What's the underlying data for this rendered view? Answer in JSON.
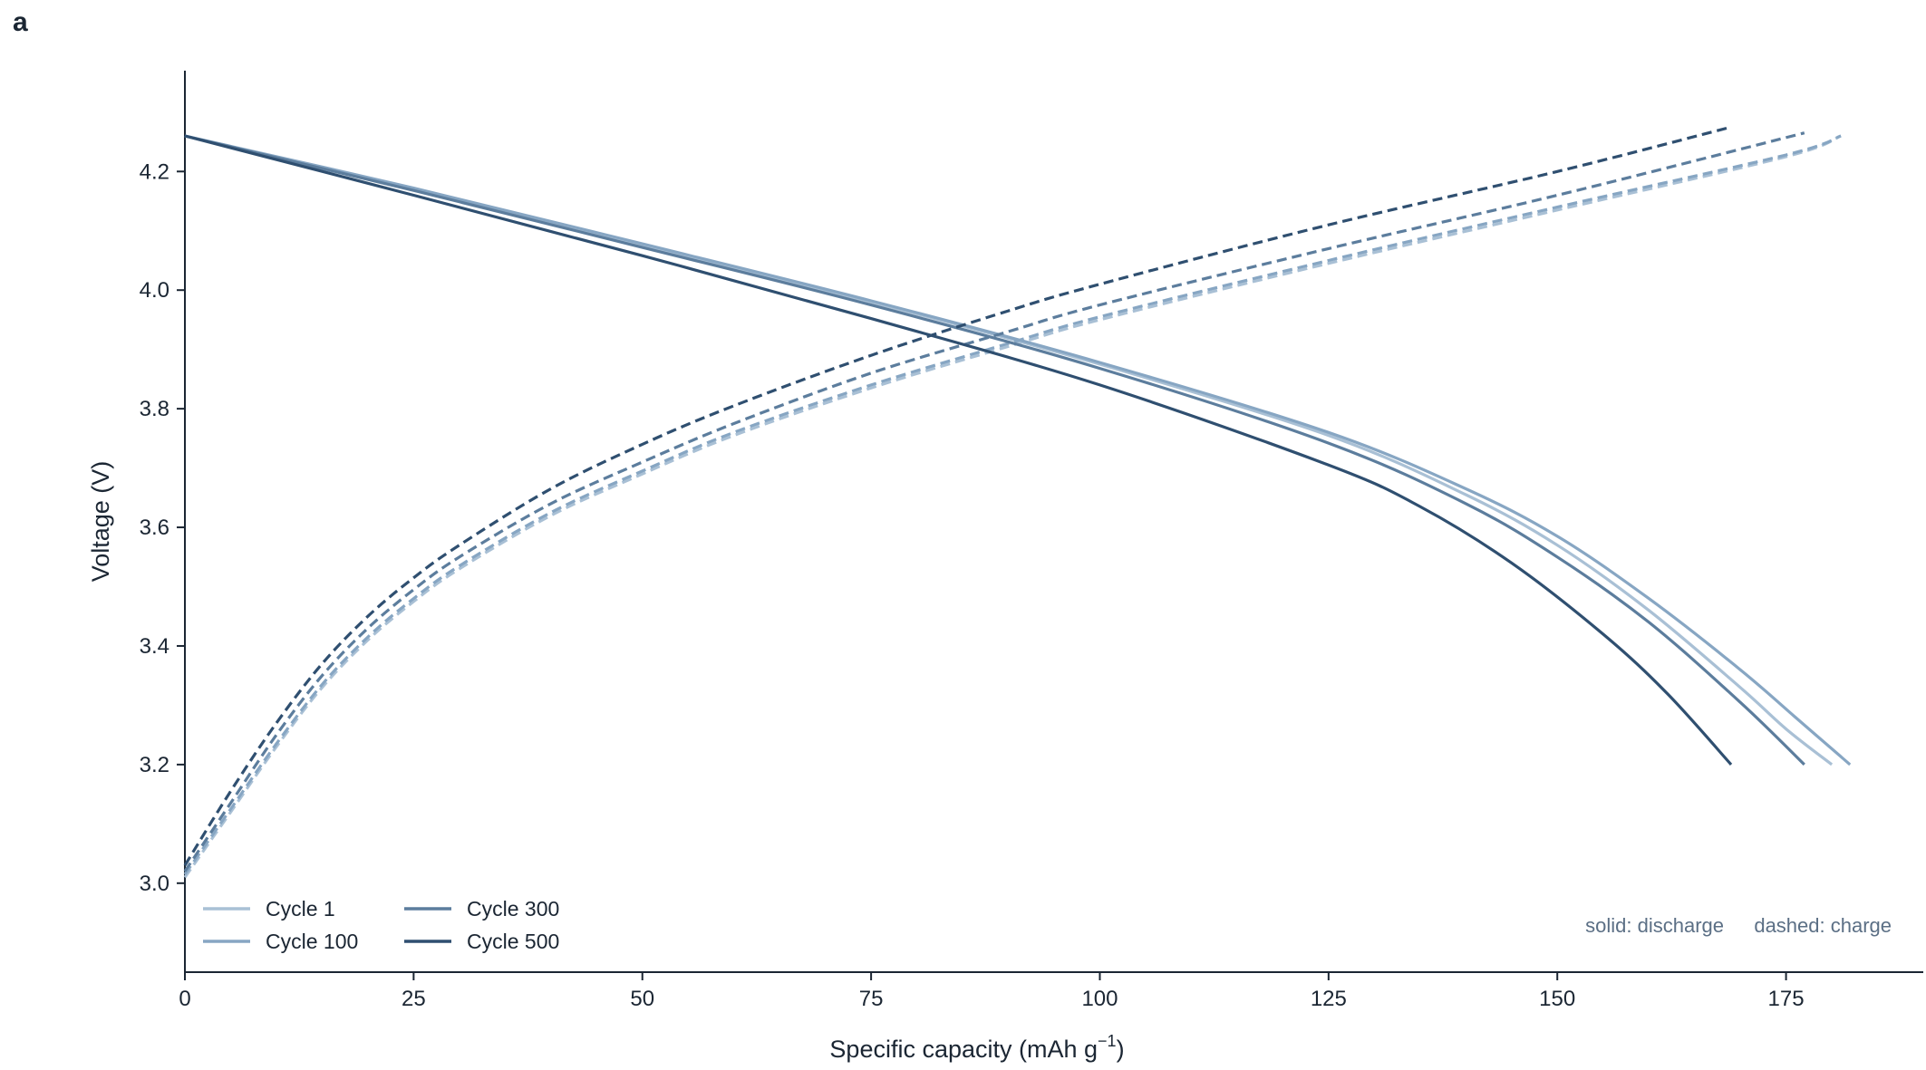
{
  "panel_label": "a",
  "chart_data": {
    "type": "line",
    "title": "",
    "xlabel": "Specific capacity (mAh g",
    "xlabel_sup": "−1",
    "xlabel_end": ")",
    "ylabel": "Voltage (V)",
    "xlim": [
      0,
      190
    ],
    "ylim": [
      2.85,
      4.37
    ],
    "xticks": [
      0,
      25,
      50,
      75,
      100,
      125,
      150,
      175
    ],
    "yticks": [
      3.0,
      3.2,
      3.4,
      3.6,
      3.8,
      4.0,
      4.2
    ],
    "grid": false,
    "legend_position": "bottom-left",
    "annotations": [
      "solid: discharge",
      "dashed: charge"
    ],
    "series": [
      {
        "name": "Cycle 1",
        "color": "#a9c0d5",
        "discharge": {
          "x": [
            0,
            25,
            50,
            75,
            100,
            125,
            140,
            150,
            160,
            170,
            175,
            180
          ],
          "y": [
            4.26,
            4.17,
            4.075,
            3.98,
            3.875,
            3.755,
            3.655,
            3.57,
            3.46,
            3.33,
            3.26,
            3.2
          ]
        },
        "charge": {
          "x": [
            0,
            5,
            10,
            15,
            20,
            25,
            30,
            40,
            50,
            60,
            75,
            90,
            100,
            125,
            150,
            175,
            181
          ],
          "y": [
            3.01,
            3.12,
            3.23,
            3.33,
            3.41,
            3.475,
            3.53,
            3.62,
            3.69,
            3.755,
            3.835,
            3.905,
            3.95,
            4.045,
            4.135,
            4.225,
            4.26
          ]
        }
      },
      {
        "name": "Cycle 100",
        "color": "#87a6c3",
        "discharge": {
          "x": [
            0,
            25,
            50,
            75,
            100,
            125,
            140,
            150,
            160,
            170,
            176,
            182
          ],
          "y": [
            4.26,
            4.172,
            4.078,
            3.982,
            3.878,
            3.76,
            3.665,
            3.585,
            3.48,
            3.36,
            3.28,
            3.2
          ]
        },
        "charge": {
          "x": [
            0,
            5,
            10,
            15,
            20,
            25,
            30,
            40,
            50,
            60,
            75,
            90,
            100,
            125,
            150,
            175,
            181
          ],
          "y": [
            3.015,
            3.125,
            3.235,
            3.335,
            3.415,
            3.48,
            3.535,
            3.625,
            3.695,
            3.76,
            3.84,
            3.91,
            3.955,
            4.05,
            4.14,
            4.228,
            4.26
          ]
        }
      },
      {
        "name": "Cycle 300",
        "color": "#5c7d9d",
        "discharge": {
          "x": [
            0,
            25,
            50,
            75,
            100,
            125,
            140,
            150,
            160,
            170,
            177
          ],
          "y": [
            4.26,
            4.168,
            4.072,
            3.975,
            3.868,
            3.742,
            3.64,
            3.55,
            3.44,
            3.305,
            3.2
          ]
        },
        "charge": {
          "x": [
            0,
            5,
            10,
            15,
            20,
            25,
            30,
            40,
            50,
            60,
            75,
            90,
            100,
            125,
            150,
            177
          ],
          "y": [
            3.02,
            3.135,
            3.25,
            3.35,
            3.43,
            3.495,
            3.55,
            3.64,
            3.71,
            3.775,
            3.86,
            3.93,
            3.975,
            4.07,
            4.16,
            4.265
          ]
        }
      },
      {
        "name": "Cycle 500",
        "color": "#2f4f70",
        "discharge": {
          "x": [
            0,
            25,
            50,
            75,
            100,
            125,
            135,
            145,
            155,
            162,
            169
          ],
          "y": [
            4.26,
            4.16,
            4.058,
            3.952,
            3.84,
            3.705,
            3.635,
            3.54,
            3.42,
            3.32,
            3.2
          ]
        },
        "charge": {
          "x": [
            0,
            5,
            10,
            15,
            20,
            25,
            30,
            40,
            50,
            60,
            75,
            90,
            100,
            125,
            150,
            169
          ],
          "y": [
            3.03,
            3.155,
            3.27,
            3.37,
            3.45,
            3.515,
            3.57,
            3.665,
            3.74,
            3.805,
            3.89,
            3.965,
            4.01,
            4.11,
            4.2,
            4.275
          ]
        }
      }
    ]
  }
}
